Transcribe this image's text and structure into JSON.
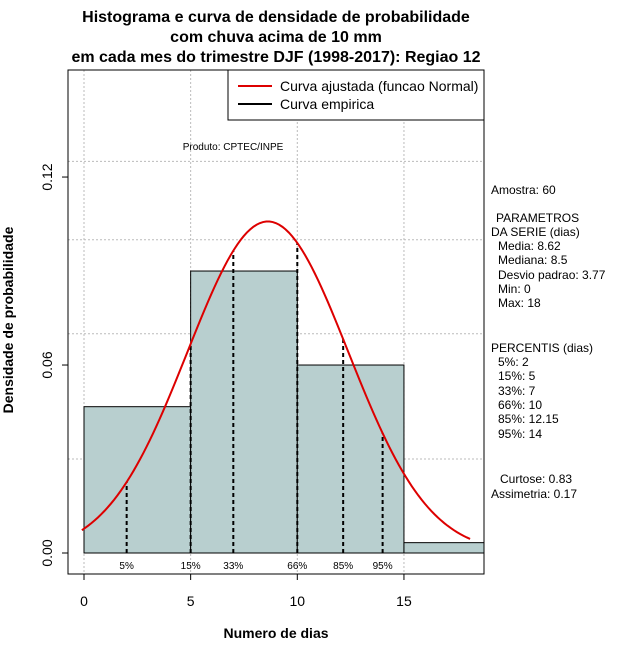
{
  "chart_data": {
    "type": "bar",
    "title_lines": [
      "Histograma e curva de densidade de probabilidade",
      "com chuva acima de 10 mm",
      "em cada mes do trimestre DJF (1998-2017): Regiao 12"
    ],
    "xlabel": "Numero de dias",
    "ylabel": "Densidade de probabilidade",
    "xlim": [
      -0.75,
      18.75
    ],
    "ylim": [
      0,
      0.15
    ],
    "xticks": [
      0,
      5,
      10,
      15
    ],
    "yticks": [
      0.0,
      0.06,
      0.12
    ],
    "ytick_labels": [
      "0.00",
      "0.06",
      "0.12"
    ],
    "bins": [
      {
        "from": 0,
        "to": 5,
        "density": 0.0467
      },
      {
        "from": 5,
        "to": 10,
        "density": 0.09
      },
      {
        "from": 10,
        "to": 15,
        "density": 0.06
      },
      {
        "from": 15,
        "to": 20,
        "density": 0.0033
      }
    ],
    "bar_color": "#b8cfcf",
    "normal_curve": {
      "mean": 8.62,
      "sd": 3.77,
      "x_from": -0.1,
      "x_to": 18.1,
      "color": "#dd0000"
    },
    "percentile_marks": [
      {
        "label": "5%",
        "x": 2
      },
      {
        "label": "15%",
        "x": 5
      },
      {
        "label": "33%",
        "x": 7
      },
      {
        "label": "66%",
        "x": 10
      },
      {
        "label": "85%",
        "x": 12.15
      },
      {
        "label": "95%",
        "x": 14
      }
    ],
    "legend": [
      {
        "label": "Curva ajustada (funcao Normal)",
        "color": "#dd0000"
      },
      {
        "label": "Curva empirica",
        "color": "#000000"
      }
    ],
    "legend_position": "top-right",
    "annotation": "Produto: CPTEC/INPE",
    "grid": true
  },
  "side_panel": {
    "sample": "Amostra: 60",
    "params_title_1": "PARAMETROS",
    "params_title_2": "DA SERIE (dias)",
    "media": "Media: 8.62",
    "mediana": "Mediana: 8.5",
    "desvio": "Desvio padrao: 3.77",
    "min": "Min: 0",
    "max": "Max: 18",
    "perc_title": "PERCENTIS (dias)",
    "p5": "5%: 2",
    "p15": "15%: 5",
    "p33": "33%: 7",
    "p66": "66%: 10",
    "p85": "85%: 12.15",
    "p95": "95%: 14",
    "curtose": "Curtose: 0.83",
    "assimetria": "Assimetria: 0.17"
  }
}
